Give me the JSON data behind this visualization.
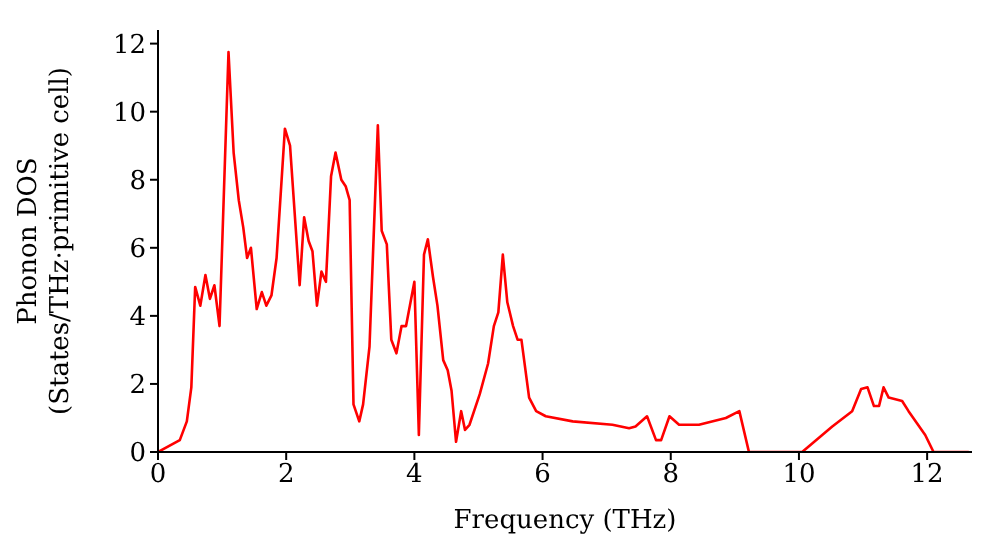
{
  "chart_data": {
    "type": "line",
    "xlabel": "Frequency (THz)",
    "ylabel": "Phonon DOS\n(States/THz·primitive cell)",
    "xlim": [
      0,
      12.7
    ],
    "ylim": [
      0,
      12.4
    ],
    "xticks": [
      0,
      2,
      4,
      6,
      8,
      10,
      12
    ],
    "yticks": [
      0,
      2,
      4,
      6,
      8,
      10,
      12
    ],
    "marker": "none",
    "line_style": "solid",
    "series": [
      {
        "color": "#ff0000",
        "x": [
          0,
          0.34,
          0.45,
          0.52,
          0.58,
          0.66,
          0.74,
          0.81,
          0.88,
          0.96,
          1.1,
          1.18,
          1.26,
          1.33,
          1.39,
          1.45,
          1.54,
          1.62,
          1.69,
          1.77,
          1.85,
          1.98,
          2.06,
          2.21,
          2.28,
          2.35,
          2.41,
          2.48,
          2.55,
          2.62,
          2.7,
          2.77,
          2.86,
          2.93,
          2.99,
          3.05,
          3.14,
          3.2,
          3.3,
          3.43,
          3.49,
          3.57,
          3.64,
          3.72,
          3.8,
          3.87,
          4.0,
          4.07,
          4.15,
          4.21,
          4.29,
          4.36,
          4.45,
          4.52,
          4.58,
          4.65,
          4.73,
          4.79,
          4.86,
          5.02,
          5.15,
          5.24,
          5.31,
          5.38,
          5.45,
          5.54,
          5.61,
          5.67,
          5.79,
          5.9,
          6.05,
          6.47,
          7.09,
          7.35,
          7.45,
          7.63,
          7.77,
          7.85,
          7.98,
          8.13,
          8.44,
          8.86,
          9.07,
          9.22,
          10.05,
          10.52,
          10.83,
          10.97,
          11.07,
          11.17,
          11.25,
          11.32,
          11.4,
          11.61,
          11.71,
          11.97,
          12.1,
          12.65
        ],
        "values": [
          0,
          0.35,
          0.9,
          1.9,
          4.85,
          4.3,
          5.2,
          4.5,
          4.9,
          3.7,
          11.75,
          8.8,
          7.4,
          6.6,
          5.7,
          6.0,
          4.2,
          4.7,
          4.3,
          4.6,
          5.7,
          9.5,
          9.0,
          4.9,
          6.9,
          6.2,
          5.9,
          4.3,
          5.3,
          5.0,
          8.1,
          8.8,
          8.0,
          7.8,
          7.4,
          1.4,
          0.9,
          1.4,
          3.1,
          9.6,
          6.5,
          6.1,
          3.3,
          2.9,
          3.7,
          3.7,
          5.0,
          0.5,
          5.8,
          6.25,
          5.15,
          4.3,
          2.7,
          2.4,
          1.8,
          0.3,
          1.2,
          0.65,
          0.8,
          1.7,
          2.6,
          3.7,
          4.1,
          5.8,
          4.4,
          3.7,
          3.3,
          3.3,
          1.6,
          1.2,
          1.05,
          0.9,
          0.8,
          0.7,
          0.75,
          1.05,
          0.35,
          0.35,
          1.05,
          0.8,
          0.8,
          1.0,
          1.2,
          0,
          0,
          0.75,
          1.2,
          1.85,
          1.9,
          1.35,
          1.35,
          1.9,
          1.6,
          1.5,
          1.2,
          0.5,
          0,
          0
        ]
      }
    ]
  }
}
